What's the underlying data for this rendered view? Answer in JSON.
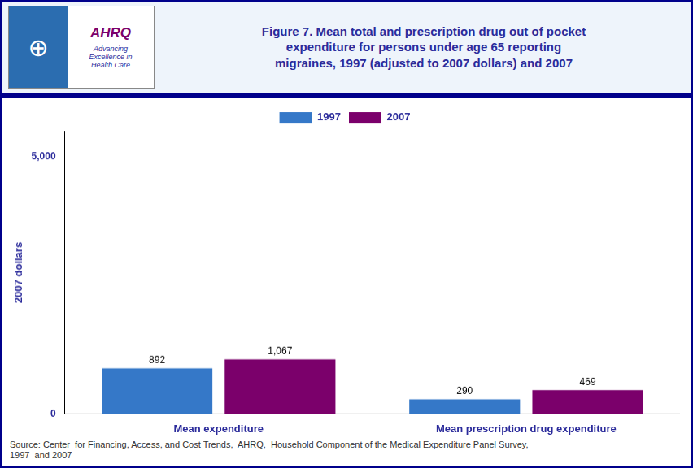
{
  "chart_data": {
    "type": "bar",
    "title": "Figure 7. Mean total and prescription drug out of pocket\nexpenditure for persons under age 65 reporting\nmigraines, 1997  (adjusted to 2007 dollars) and 2007",
    "categories": [
      "Mean expenditure",
      "Mean prescription drug expenditure"
    ],
    "series": [
      {
        "name": "1997",
        "color": "#3578C8",
        "values": [
          892,
          290
        ],
        "value_labels": [
          "892",
          "290"
        ]
      },
      {
        "name": "2007",
        "color": "#7B006B",
        "values": [
          1067,
          469
        ],
        "value_labels": [
          "1,067",
          "469"
        ]
      }
    ],
    "ylabel": "2007 dollars",
    "ylim": [
      0,
      5500
    ],
    "yticks": [
      0,
      {
        "value": 5000,
        "label": "5,000"
      }
    ],
    "grid": false,
    "legend": "top",
    "data_labels": true,
    "annotations": [
      "⊕",
      "AHRQ",
      "Advancing\nExcellence in\nHealth Care",
      "Source: Center  for Financing, Access, and Cost Trends,  AHRQ,  Household Component of the Medical Expenditure Panel Survey,\n1997  and 2007"
    ]
  }
}
